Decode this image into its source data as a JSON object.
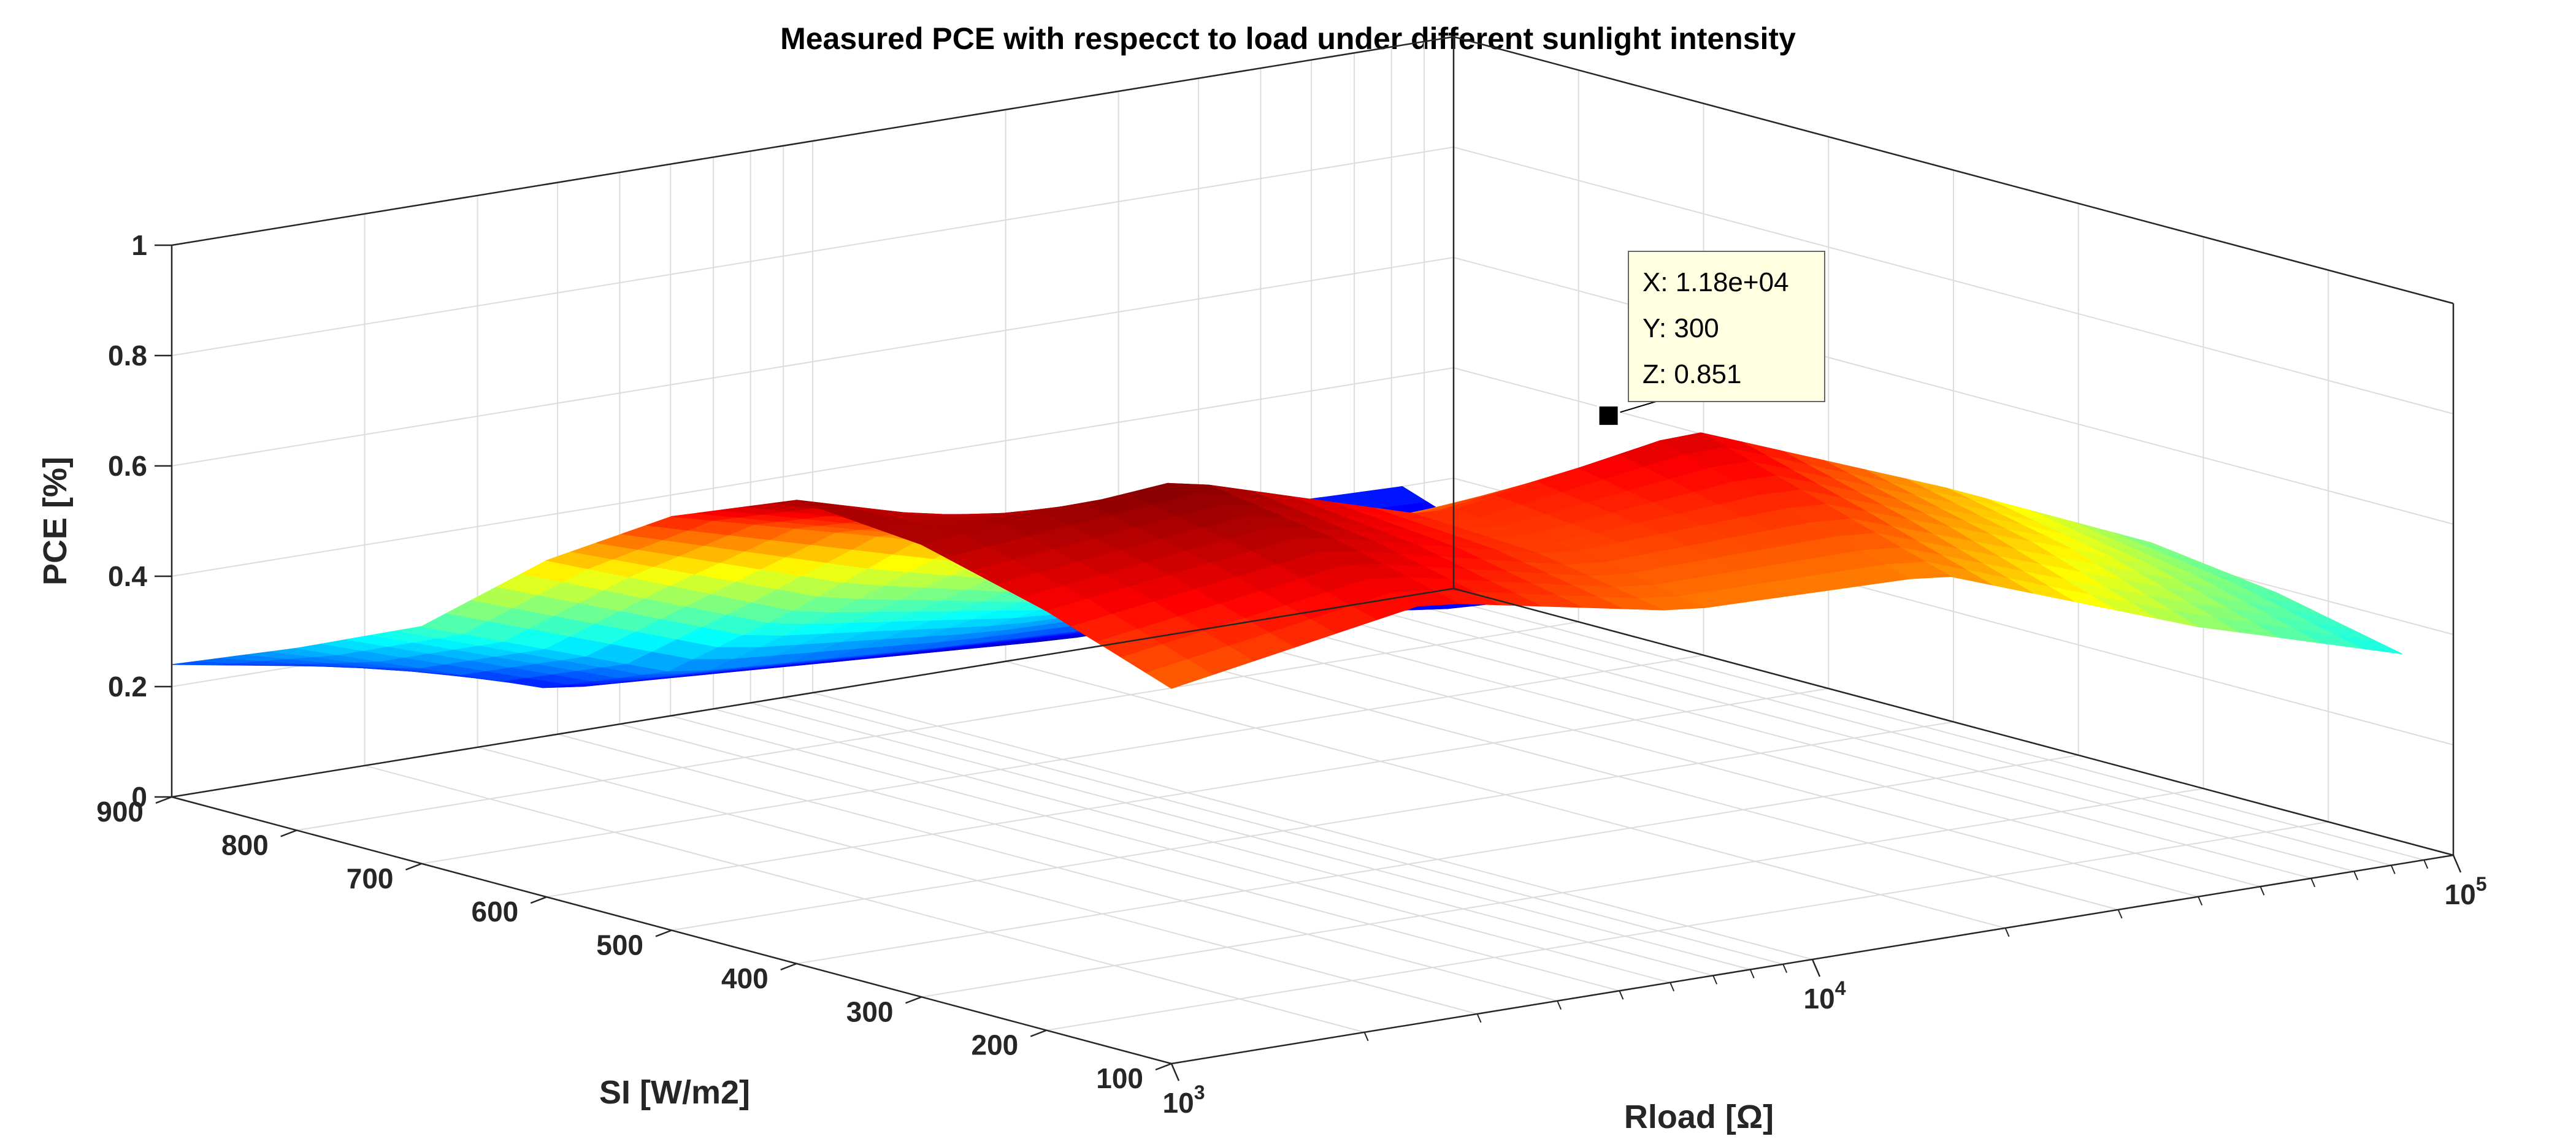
{
  "chart_data": {
    "type": "surface3d",
    "title": "Measured PCE with respecct to load under different sunlight intensity",
    "xlabel": "Rload [Ω]",
    "ylabel": "SI [W/m2]",
    "zlabel": "PCE [%]",
    "x_scale": "log",
    "xlim": [
      1000,
      100000
    ],
    "ylim": [
      100,
      900
    ],
    "zlim": [
      0,
      1
    ],
    "x_ticks": [
      {
        "value": 1000,
        "base": "10",
        "exp": "3"
      },
      {
        "value": 10000,
        "base": "10",
        "exp": "4"
      },
      {
        "value": 100000,
        "base": "10",
        "exp": "5"
      }
    ],
    "y_ticks": [
      "900",
      "800",
      "700",
      "600",
      "500",
      "400",
      "300",
      "200",
      "100"
    ],
    "y_tick_values": [
      900,
      800,
      700,
      600,
      500,
      400,
      300,
      200,
      100
    ],
    "z_ticks": [
      "0",
      "0.2",
      "0.4",
      "0.6",
      "0.8",
      "1"
    ],
    "z_tick_values": [
      0,
      0.2,
      0.4,
      0.6,
      0.8,
      1
    ],
    "grid": true,
    "colormap": "jet",
    "surface": {
      "log10_x": [
        3.0,
        3.4,
        3.8,
        4.2,
        4.6,
        4.92
      ],
      "y": [
        900,
        800,
        700,
        600,
        500,
        400,
        300,
        200,
        100
      ],
      "z": [
        [
          0.24,
          0.16,
          0.08,
          0.1,
          0.21,
          0.2
        ],
        [
          0.33,
          0.18,
          0.15,
          0.12,
          0.12,
          0.12
        ],
        [
          0.43,
          0.27,
          0.24,
          0.22,
          0.16,
          0.14
        ],
        [
          0.61,
          0.44,
          0.37,
          0.37,
          0.33,
          0.25
        ],
        [
          0.75,
          0.63,
          0.49,
          0.48,
          0.43,
          0.33
        ],
        [
          0.84,
          0.71,
          0.63,
          0.64,
          0.51,
          0.39
        ],
        [
          0.82,
          0.86,
          0.72,
          0.8,
          0.62,
          0.46
        ],
        [
          0.76,
          0.82,
          0.71,
          0.73,
          0.57,
          0.43
        ],
        [
          0.68,
          0.76,
          0.67,
          0.66,
          0.49,
          0.38
        ]
      ]
    },
    "datatip": {
      "x_value": 11800,
      "y_value": 300,
      "z_value": 0.851,
      "lines": [
        "X: 1.18e+04",
        "Y: 300",
        "Z: 0.851"
      ]
    },
    "colors": {
      "grid": "#dcdcdc",
      "axis": "#262626",
      "tip_bg": "#ffffe1"
    }
  }
}
